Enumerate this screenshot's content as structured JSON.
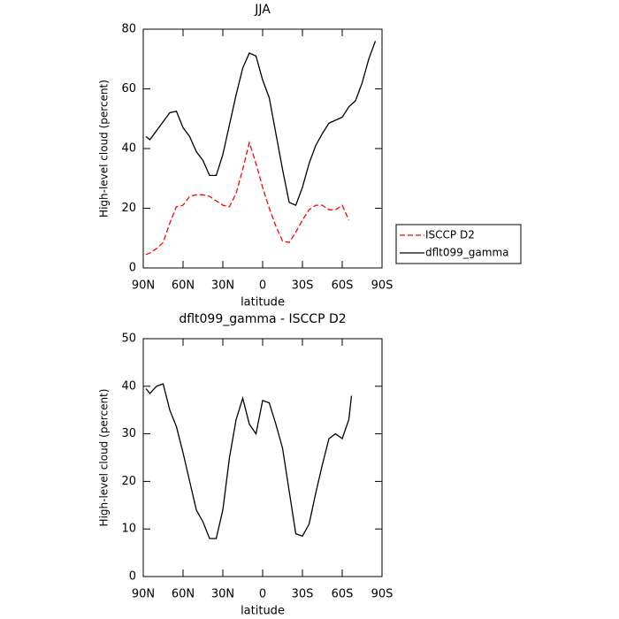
{
  "chart_data": [
    {
      "type": "line",
      "title": "JJA",
      "xlabel": "latitude",
      "ylabel": "High-level cloud (percent)",
      "x": [
        88,
        85,
        80,
        75,
        70,
        65,
        60,
        55,
        50,
        45,
        40,
        35,
        30,
        25,
        20,
        15,
        10,
        5,
        0,
        -5,
        -10,
        -15,
        -20,
        -25,
        -30,
        -35,
        -40,
        -45,
        -50,
        -55,
        -60,
        -65,
        -70,
        -75,
        -80,
        -85
      ],
      "series": [
        {
          "name": "ISCCP D2",
          "color": "#ff0000",
          "linestyle": "dashed",
          "values": [
            4.5,
            5,
            6.5,
            8.5,
            15,
            20.5,
            21,
            24,
            24.5,
            24.5,
            24,
            22.5,
            21,
            20.5,
            25,
            33,
            42,
            35,
            27,
            20,
            14,
            9,
            8.5,
            12,
            16,
            19.5,
            21,
            21,
            19.5,
            19.5,
            21,
            16,
            null,
            null,
            null,
            null
          ]
        },
        {
          "name": "dflt099_gamma",
          "color": "#000000",
          "linestyle": "solid",
          "values": [
            44,
            43,
            46,
            49,
            52,
            52.5,
            47,
            44,
            39,
            36,
            31,
            31,
            38,
            48,
            58,
            67,
            72,
            71,
            63,
            57,
            45,
            33,
            22,
            21,
            27,
            35,
            41,
            45,
            48.5,
            49.5,
            50.5,
            54,
            56,
            62,
            70,
            76
          ]
        }
      ],
      "xlim": [
        90,
        -90
      ],
      "xticks": [
        {
          "value": 90,
          "label": "90N"
        },
        {
          "value": 60,
          "label": "60N"
        },
        {
          "value": 30,
          "label": "30N"
        },
        0,
        {
          "value": -30,
          "label": "30S"
        },
        {
          "value": -60,
          "label": "60S"
        },
        {
          "value": -90,
          "label": "90S"
        }
      ],
      "ylim": [
        0,
        80
      ],
      "yticks": [
        0,
        20,
        40,
        60,
        80
      ],
      "legend": "right"
    },
    {
      "type": "line",
      "title": "dflt099_gamma - ISCCP D2",
      "xlabel": "latitude",
      "ylabel": "High-level cloud (percent)",
      "x": [
        88,
        85,
        80,
        75,
        70,
        65,
        60,
        55,
        50,
        45,
        40,
        35,
        30,
        25,
        20,
        15,
        10,
        5,
        0,
        -5,
        -10,
        -15,
        -20,
        -25,
        -30,
        -35,
        -40,
        -45,
        -50,
        -55,
        -60,
        -65,
        -67
      ],
      "series": [
        {
          "color": "#000000",
          "linestyle": "solid",
          "values": [
            39.5,
            38.5,
            40,
            40.5,
            35,
            31.5,
            26,
            20,
            14,
            11.5,
            8,
            8,
            14,
            25,
            33,
            37.5,
            32,
            30,
            37,
            36.5,
            32,
            27,
            18,
            9,
            8.5,
            11,
            17.5,
            23.5,
            29,
            30,
            29,
            33,
            38
          ]
        }
      ],
      "xlim": [
        90,
        -90
      ],
      "xticks": [
        {
          "value": 90,
          "label": "90N"
        },
        {
          "value": 60,
          "label": "60N"
        },
        {
          "value": 30,
          "label": "30N"
        },
        0,
        {
          "value": -30,
          "label": "30S"
        },
        {
          "value": -60,
          "label": "60S"
        },
        {
          "value": -90,
          "label": "90S"
        }
      ],
      "ylim": [
        0,
        50
      ],
      "yticks": [
        0,
        10,
        20,
        30,
        40,
        50
      ]
    }
  ]
}
